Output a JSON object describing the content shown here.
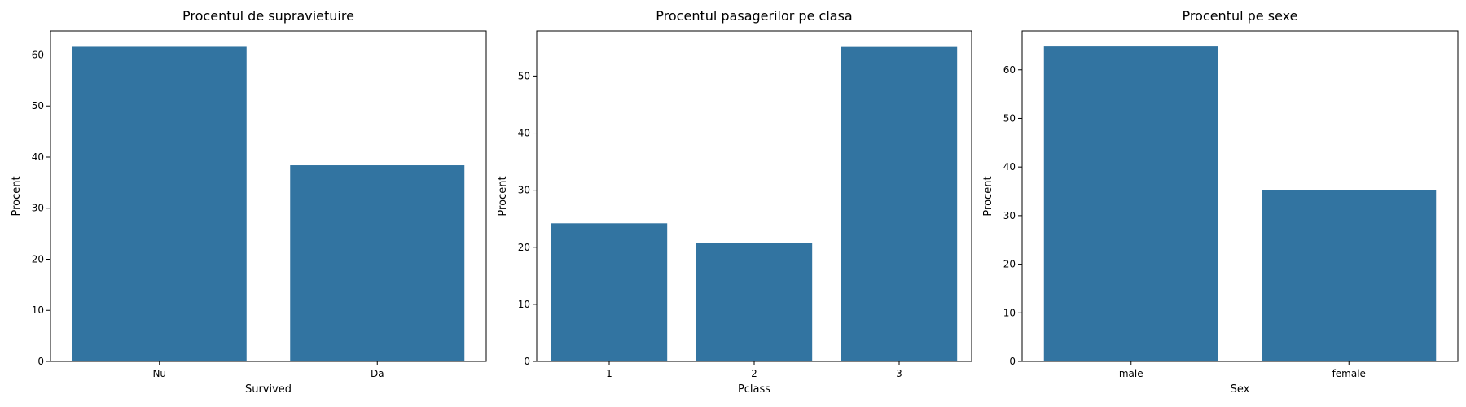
{
  "chart_data": [
    {
      "type": "bar",
      "title": "Procentul de supravietuire",
      "xlabel": "Survived",
      "ylabel": "Procent",
      "categories": [
        "Nu",
        "Da"
      ],
      "values": [
        61.6,
        38.4
      ],
      "ylim": [
        0,
        64.7
      ],
      "yticks": [
        0,
        10,
        20,
        30,
        40,
        50,
        60
      ],
      "color": "#3274a1",
      "grid": false
    },
    {
      "type": "bar",
      "title": "Procentul pasagerilor pe clasa",
      "xlabel": "Pclass",
      "ylabel": "Procent",
      "categories": [
        "1",
        "2",
        "3"
      ],
      "values": [
        24.2,
        20.7,
        55.1
      ],
      "ylim": [
        0,
        57.9
      ],
      "yticks": [
        0,
        10,
        20,
        30,
        40,
        50
      ],
      "color": "#3274a1",
      "grid": false
    },
    {
      "type": "bar",
      "title": "Procentul pe sexe",
      "xlabel": "Sex",
      "ylabel": "Procent",
      "categories": [
        "male",
        "female"
      ],
      "values": [
        64.8,
        35.2
      ],
      "ylim": [
        0,
        68.0
      ],
      "yticks": [
        0,
        10,
        20,
        30,
        40,
        50,
        60
      ],
      "color": "#3274a1",
      "grid": false
    }
  ]
}
